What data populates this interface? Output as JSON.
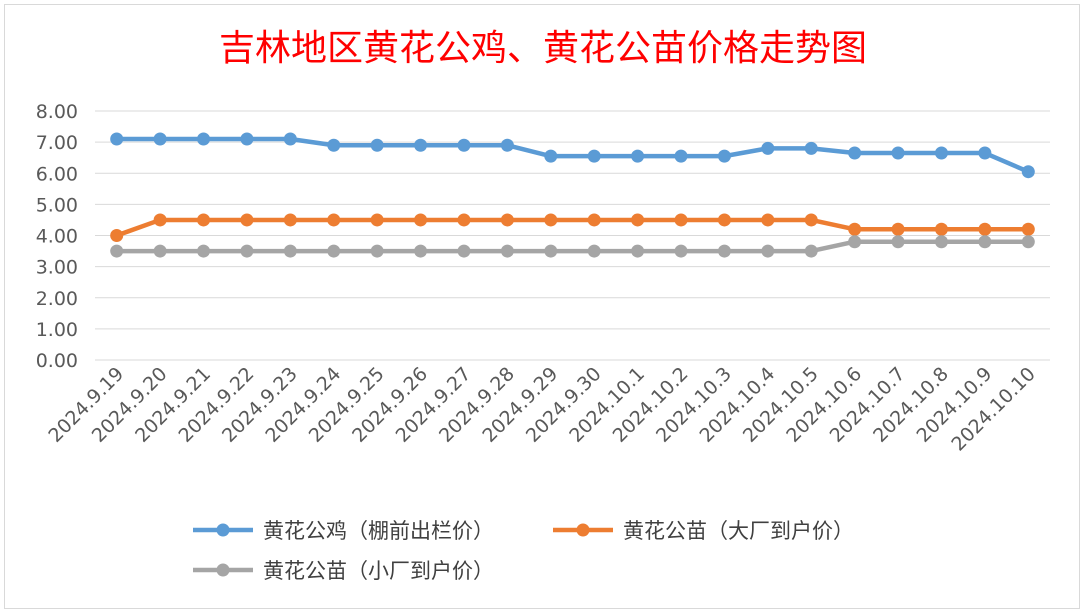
{
  "chart_data": {
    "type": "line",
    "title": "吉林地区黄花公鸡、黄花公苗价格走势图",
    "title_color": "#ff0000",
    "categories": [
      "2024.9.19",
      "2024.9.20",
      "2024.9.21",
      "2024.9.22",
      "2024.9.23",
      "2024.9.24",
      "2024.9.25",
      "2024.9.26",
      "2024.9.27",
      "2024.9.28",
      "2024.9.29",
      "2024.9.30",
      "2024.10.1",
      "2024.10.2",
      "2024.10.3",
      "2024.10.4",
      "2024.10.5",
      "2024.10.6",
      "2024.10.7",
      "2024.10.8",
      "2024.10.9",
      "2024.10.10"
    ],
    "y_ticks": [
      "0.00",
      "1.00",
      "2.00",
      "3.00",
      "4.00",
      "5.00",
      "6.00",
      "7.00",
      "8.00"
    ],
    "ylim": [
      0,
      8
    ],
    "grid": true,
    "legend_position": "bottom",
    "series": [
      {
        "name": "黄花公鸡（棚前出栏价）",
        "color": "#5b9bd5",
        "values": [
          7.1,
          7.1,
          7.1,
          7.1,
          7.1,
          6.9,
          6.9,
          6.9,
          6.9,
          6.9,
          6.55,
          6.55,
          6.55,
          6.55,
          6.55,
          6.8,
          6.8,
          6.65,
          6.65,
          6.65,
          6.65,
          6.05
        ]
      },
      {
        "name": "黄花公苗（大厂到户价）",
        "color": "#ed7d31",
        "values": [
          4.0,
          4.5,
          4.5,
          4.5,
          4.5,
          4.5,
          4.5,
          4.5,
          4.5,
          4.5,
          4.5,
          4.5,
          4.5,
          4.5,
          4.5,
          4.5,
          4.5,
          4.2,
          4.2,
          4.2,
          4.2,
          4.2
        ]
      },
      {
        "name": "黄花公苗（小厂到户价）",
        "color": "#a5a5a5",
        "values": [
          3.5,
          3.5,
          3.5,
          3.5,
          3.5,
          3.5,
          3.5,
          3.5,
          3.5,
          3.5,
          3.5,
          3.5,
          3.5,
          3.5,
          3.5,
          3.5,
          3.5,
          3.8,
          3.8,
          3.8,
          3.8,
          3.8
        ]
      }
    ]
  }
}
